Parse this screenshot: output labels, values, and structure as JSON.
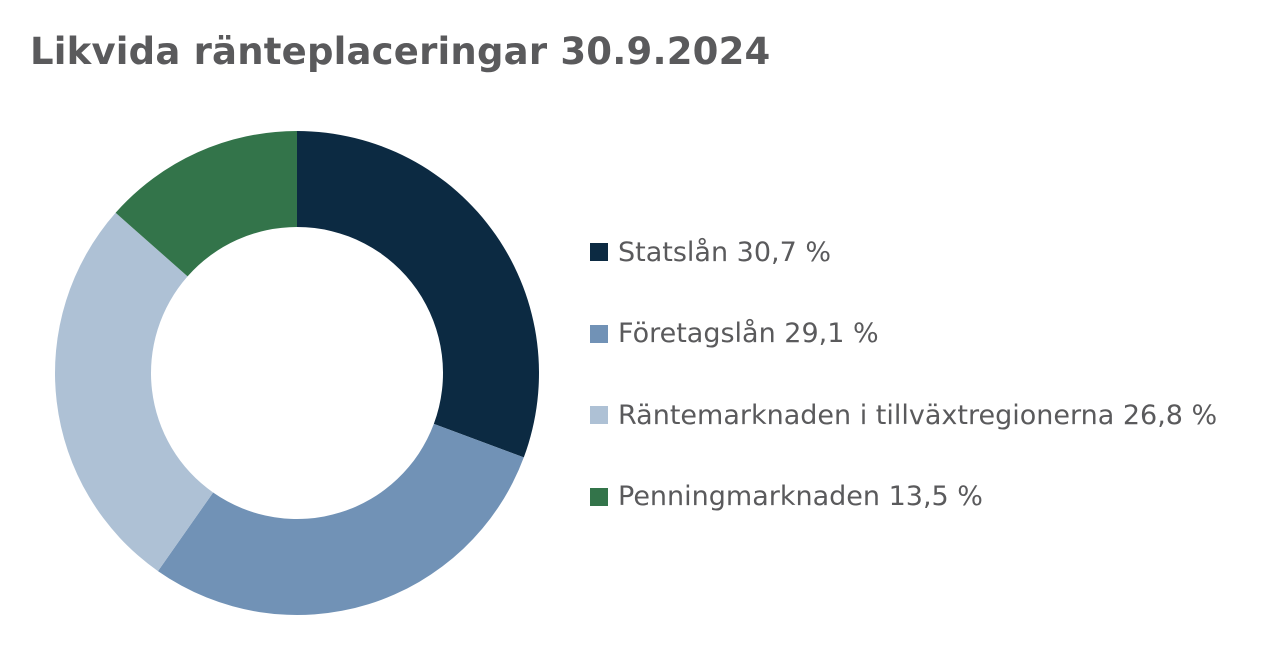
{
  "chart_data": {
    "type": "pie",
    "style": "donut",
    "title": "Likvida ränteplaceringar 30.9.2024",
    "categories": [
      "Statslån",
      "Företagslån",
      "Räntemarknaden i tillväxtregionerna",
      "Penningmarknaden"
    ],
    "values": [
      30.7,
      29.1,
      26.8,
      13.5
    ],
    "unit": "%",
    "colors": [
      "#0c2a42",
      "#7192b6",
      "#aec1d5",
      "#33744a"
    ],
    "legend_labels": [
      "Statslån 30,7 %",
      "Företagslån 29,1 %",
      "Räntemarknaden i tillväxtregionerna 26,8 %",
      "Penningmarknaden 13,5 %"
    ],
    "legend_position": "right",
    "start_angle": "top",
    "direction": "clockwise"
  }
}
